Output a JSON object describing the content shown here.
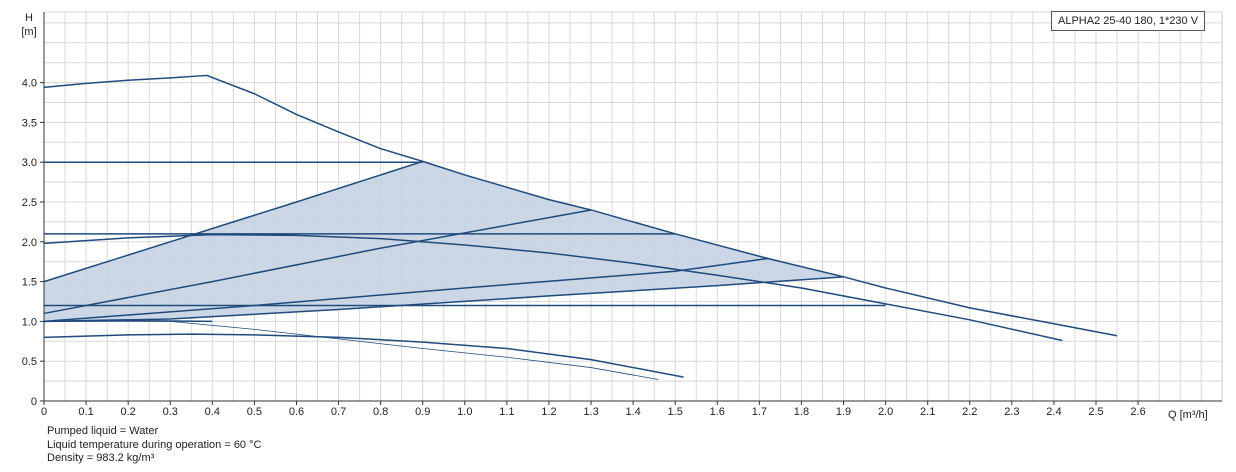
{
  "chart_data": {
    "type": "line",
    "ylabel_symbol": "H",
    "ylabel_unit": "[m]",
    "xlabel": "Q [m³/h]",
    "xlim": [
      0,
      2.6
    ],
    "ylim": [
      0,
      4.0
    ],
    "x_ticks": [
      "0",
      "0.1",
      "0.2",
      "0.3",
      "0.4",
      "0.5",
      "0.6",
      "0.7",
      "0.8",
      "0.9",
      "1.0",
      "1.1",
      "1.2",
      "1.3",
      "1.4",
      "1.5",
      "1.6",
      "1.7",
      "1.8",
      "1.9",
      "2.0",
      "2.1",
      "2.2",
      "2.3",
      "2.4",
      "2.5",
      "2.6"
    ],
    "y_ticks": [
      "0",
      "0.5",
      "1.0",
      "1.5",
      "2.0",
      "2.5",
      "3.0",
      "3.5",
      "4.0"
    ],
    "grid": true,
    "legend_label": "ALPHA2 25-40 180, 1*230 V",
    "legend_position": "top-right",
    "series": [
      {
        "values": [
          [
            0,
            3.94
          ],
          [
            0.1,
            3.99
          ],
          [
            0.2,
            4.03
          ],
          [
            0.3,
            4.06
          ],
          [
            0.387,
            4.09
          ],
          [
            0.5,
            3.86
          ],
          [
            0.6,
            3.6
          ],
          [
            0.7,
            3.38
          ],
          [
            0.8,
            3.17
          ],
          [
            0.9,
            3.01
          ],
          [
            1.0,
            2.84
          ],
          [
            1.2,
            2.53
          ],
          [
            1.3,
            2.4
          ],
          [
            1.5,
            2.1
          ],
          [
            1.72,
            1.79
          ],
          [
            1.9,
            1.56
          ],
          [
            2.0,
            1.42
          ],
          [
            2.2,
            1.17
          ],
          [
            2.4,
            0.97
          ],
          [
            2.55,
            0.82
          ]
        ]
      },
      {
        "values": [
          [
            0,
            1.5
          ],
          [
            0.3,
            2.0
          ],
          [
            0.6,
            2.5
          ],
          [
            0.9,
            3.01
          ]
        ]
      },
      {
        "values": [
          [
            0,
            3.0
          ],
          [
            0.9,
            3.0
          ]
        ]
      },
      {
        "values": [
          [
            0,
            1.1
          ],
          [
            0.4,
            1.5
          ],
          [
            0.8,
            1.92
          ],
          [
            1.3,
            2.4
          ]
        ]
      },
      {
        "values": [
          [
            0,
            2.1
          ],
          [
            1.5,
            2.1
          ]
        ]
      },
      {
        "values": [
          [
            0,
            1.0
          ],
          [
            0.5,
            1.2
          ],
          [
            1.0,
            1.42
          ],
          [
            1.5,
            1.63
          ],
          [
            1.72,
            1.79
          ]
        ]
      },
      {
        "values": [
          [
            0,
            1.0
          ],
          [
            0.3,
            1.03
          ],
          [
            0.7,
            1.15
          ],
          [
            1.2,
            1.32
          ],
          [
            1.6,
            1.45
          ],
          [
            1.9,
            1.56
          ]
        ]
      },
      {
        "values": [
          [
            0,
            1.2
          ],
          [
            2.0,
            1.2
          ]
        ]
      },
      {
        "values": [
          [
            0,
            1.98
          ],
          [
            0.2,
            2.05
          ],
          [
            0.4,
            2.09
          ],
          [
            0.6,
            2.08
          ],
          [
            0.8,
            2.04
          ],
          [
            1.0,
            1.96
          ],
          [
            1.2,
            1.86
          ],
          [
            1.4,
            1.73
          ],
          [
            1.6,
            1.58
          ],
          [
            1.8,
            1.42
          ],
          [
            2.0,
            1.22
          ],
          [
            2.2,
            1.02
          ],
          [
            2.42,
            0.76
          ]
        ]
      },
      {
        "values": [
          [
            0,
            1.0
          ],
          [
            0.2,
            1.01
          ],
          [
            0.4,
            1.0
          ]
        ]
      },
      {
        "values": [
          [
            0,
            0.8
          ],
          [
            0.2,
            0.83
          ],
          [
            0.35,
            0.84
          ],
          [
            0.5,
            0.83
          ],
          [
            0.7,
            0.8
          ],
          [
            0.9,
            0.74
          ],
          [
            1.1,
            0.66
          ],
          [
            1.3,
            0.52
          ],
          [
            1.52,
            0.3
          ]
        ]
      },
      {
        "values": [
          [
            0,
            1.0
          ],
          [
            0.3,
            1.0
          ],
          [
            0.5,
            0.9
          ],
          [
            0.7,
            0.78
          ],
          [
            0.9,
            0.66
          ],
          [
            1.1,
            0.55
          ],
          [
            1.3,
            0.42
          ],
          [
            1.46,
            0.27
          ]
        ]
      }
    ],
    "shaded_region": [
      [
        0,
        1.5
      ],
      [
        0.9,
        3.01
      ],
      [
        1.0,
        2.84
      ],
      [
        1.2,
        2.53
      ],
      [
        1.5,
        2.1
      ],
      [
        1.9,
        1.56
      ],
      [
        1.6,
        1.45
      ],
      [
        1.2,
        1.32
      ],
      [
        0.7,
        1.15
      ],
      [
        0.3,
        1.03
      ],
      [
        0,
        1.0
      ]
    ],
    "colors": {
      "curve": "#1f4a7c",
      "fill": "#c5d3e3",
      "grid": "#d8d8d8",
      "axis": "#333333"
    }
  },
  "notes": [
    "Pumped liquid = Water",
    "Liquid temperature during operation = 60 °C",
    "Density = 983.2 kg/m³"
  ]
}
